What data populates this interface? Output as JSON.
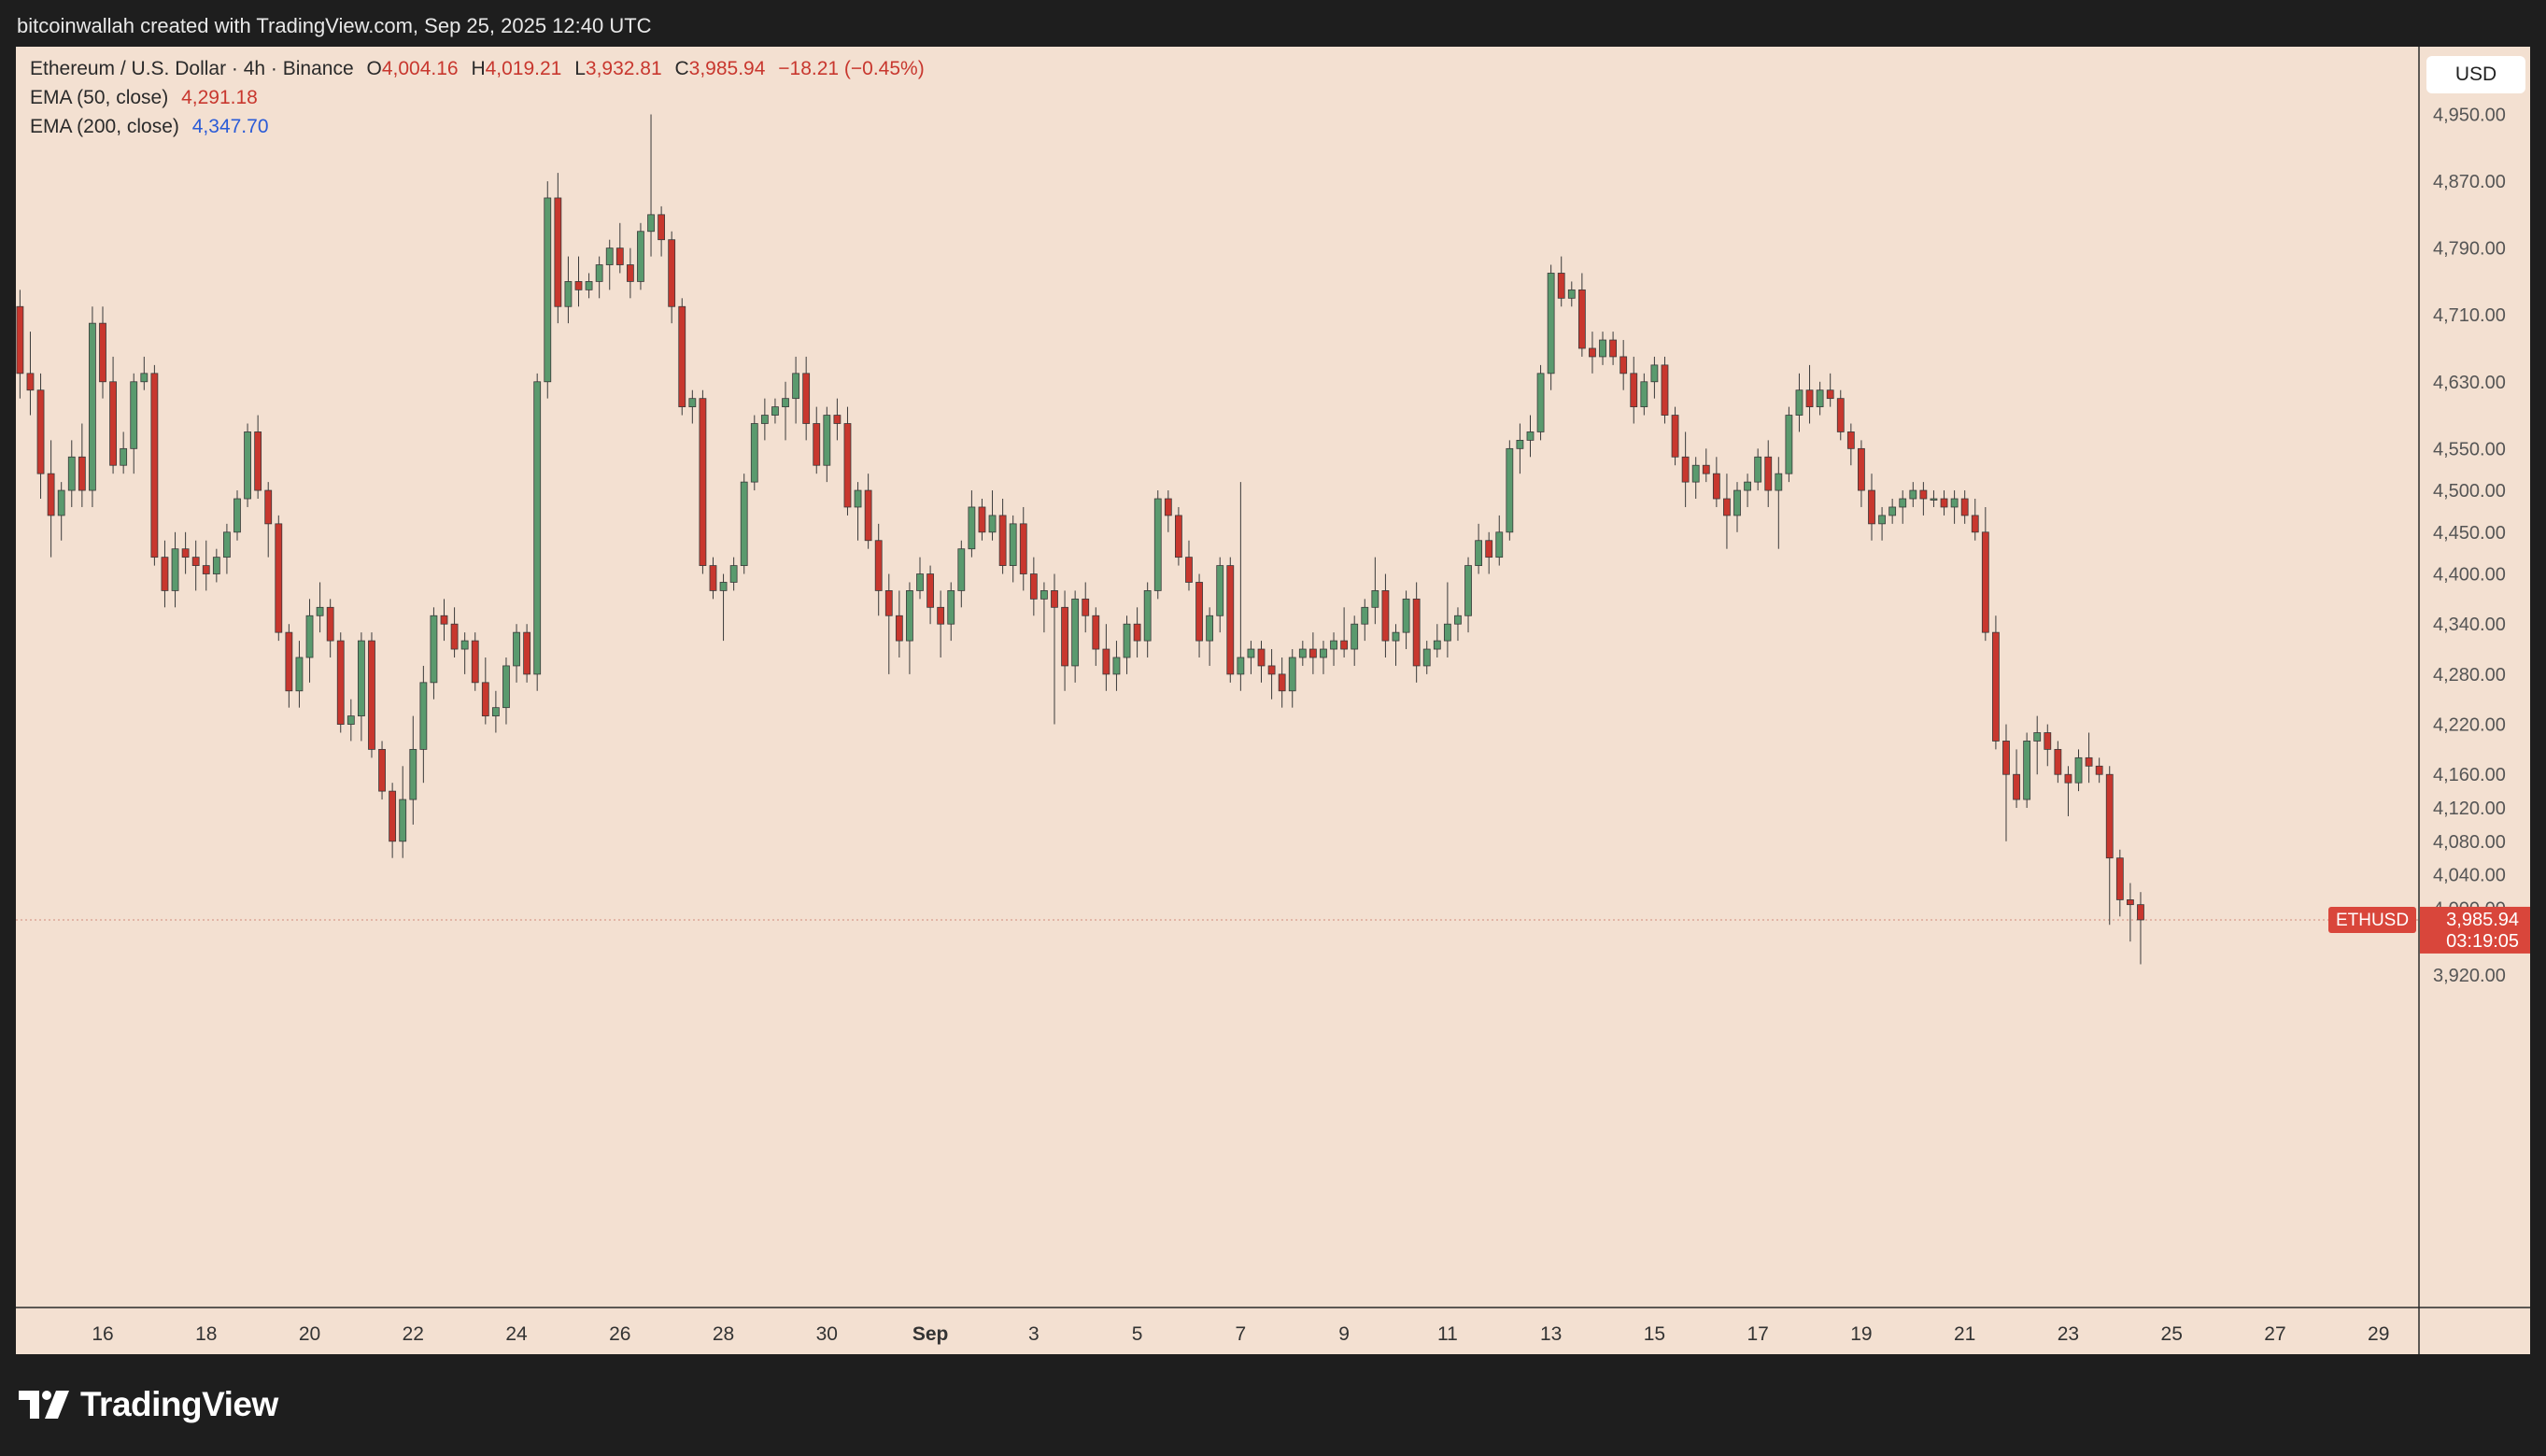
{
  "header": {
    "attribution": "bitcoinwallah created with TradingView.com, Sep 25, 2025 12:40 UTC"
  },
  "legend": {
    "symbol": "Ethereum / U.S. Dollar · 4h · Binance",
    "open_label": "O",
    "open": "4,004.16",
    "high_label": "H",
    "high": "4,019.21",
    "low_label": "L",
    "low": "3,932.81",
    "close_label": "C",
    "close": "3,985.94",
    "change": "−18.21 (−0.45%)",
    "ema50_label": "EMA (50, close)",
    "ema50_value": "4,291.18",
    "ema200_label": "EMA (200, close)",
    "ema200_value": "4,347.70"
  },
  "currency": "USD",
  "price_tag": {
    "symbol": "ETHUSD",
    "price": "3,985.94",
    "countdown": "03:19:05"
  },
  "brand": {
    "name": "TradingView"
  },
  "colors": {
    "up": "#5a9a6e",
    "down": "#c8372e",
    "background": "#f3e0d1",
    "frame": "#1e1e1e"
  },
  "chart_data": {
    "type": "candlestick",
    "interval": "4h",
    "y_ticks": [
      "3,920.00",
      "4,000.00",
      "4,040.00",
      "4,080.00",
      "4,120.00",
      "4,160.00",
      "4,220.00",
      "4,280.00",
      "4,340.00",
      "4,400.00",
      "4,450.00",
      "4,500.00",
      "4,550.00",
      "4,630.00",
      "4,710.00",
      "4,790.00",
      "4,870.00",
      "4,950.00"
    ],
    "y_tick_values": [
      3920,
      4000,
      4040,
      4080,
      4120,
      4160,
      4220,
      4280,
      4340,
      4400,
      4450,
      4500,
      4550,
      4630,
      4710,
      4790,
      4870,
      4950
    ],
    "x_ticks": [
      "16",
      "18",
      "20",
      "22",
      "24",
      "26",
      "28",
      "30",
      "Sep",
      "3",
      "5",
      "7",
      "9",
      "11",
      "13",
      "15",
      "17",
      "19",
      "21",
      "23",
      "25",
      "27",
      "29"
    ],
    "x_tick_days": [
      0,
      2,
      4,
      6,
      8,
      10,
      12,
      14,
      16,
      18,
      20,
      22,
      24,
      26,
      28,
      30,
      32,
      34,
      36,
      38,
      40,
      42,
      44
    ],
    "last_price": 3985.94,
    "series": [
      [
        -1.6,
        4720,
        4740,
        4610,
        4640
      ],
      [
        -1.4,
        4640,
        4690,
        4590,
        4620
      ],
      [
        -1.2,
        4620,
        4640,
        4490,
        4520
      ],
      [
        -1.0,
        4520,
        4560,
        4420,
        4470
      ],
      [
        -0.8,
        4470,
        4510,
        4440,
        4500
      ],
      [
        -0.6,
        4500,
        4560,
        4480,
        4540
      ],
      [
        -0.4,
        4540,
        4580,
        4480,
        4500
      ],
      [
        -0.2,
        4500,
        4720,
        4480,
        4700
      ],
      [
        0.0,
        4700,
        4720,
        4610,
        4630
      ],
      [
        0.2,
        4630,
        4660,
        4520,
        4530
      ],
      [
        0.4,
        4530,
        4570,
        4520,
        4550
      ],
      [
        0.6,
        4550,
        4640,
        4520,
        4630
      ],
      [
        0.8,
        4630,
        4660,
        4620,
        4640
      ],
      [
        1.0,
        4640,
        4650,
        4410,
        4420
      ],
      [
        1.2,
        4420,
        4440,
        4360,
        4380
      ],
      [
        1.4,
        4380,
        4450,
        4360,
        4430
      ],
      [
        1.6,
        4430,
        4450,
        4400,
        4420
      ],
      [
        1.8,
        4420,
        4440,
        4380,
        4410
      ],
      [
        2.0,
        4410,
        4440,
        4380,
        4400
      ],
      [
        2.2,
        4400,
        4430,
        4390,
        4420
      ],
      [
        2.4,
        4420,
        4460,
        4400,
        4450
      ],
      [
        2.6,
        4450,
        4500,
        4440,
        4490
      ],
      [
        2.8,
        4490,
        4580,
        4480,
        4570
      ],
      [
        3.0,
        4570,
        4590,
        4490,
        4500
      ],
      [
        3.2,
        4500,
        4510,
        4420,
        4460
      ],
      [
        3.4,
        4460,
        4470,
        4320,
        4330
      ],
      [
        3.6,
        4330,
        4340,
        4240,
        4260
      ],
      [
        3.8,
        4260,
        4320,
        4240,
        4300
      ],
      [
        4.0,
        4300,
        4370,
        4270,
        4350
      ],
      [
        4.2,
        4350,
        4390,
        4330,
        4360
      ],
      [
        4.4,
        4360,
        4370,
        4300,
        4320
      ],
      [
        4.6,
        4320,
        4330,
        4210,
        4220
      ],
      [
        4.8,
        4220,
        4250,
        4200,
        4230
      ],
      [
        5.0,
        4230,
        4330,
        4200,
        4320
      ],
      [
        5.2,
        4320,
        4330,
        4180,
        4190
      ],
      [
        5.4,
        4190,
        4200,
        4130,
        4140
      ],
      [
        5.6,
        4140,
        4150,
        4060,
        4080
      ],
      [
        5.8,
        4080,
        4170,
        4060,
        4130
      ],
      [
        6.0,
        4130,
        4230,
        4100,
        4190
      ],
      [
        6.2,
        4190,
        4290,
        4150,
        4270
      ],
      [
        6.4,
        4270,
        4360,
        4250,
        4350
      ],
      [
        6.6,
        4350,
        4370,
        4320,
        4340
      ],
      [
        6.8,
        4340,
        4360,
        4300,
        4310
      ],
      [
        7.0,
        4310,
        4330,
        4280,
        4320
      ],
      [
        7.2,
        4320,
        4330,
        4260,
        4270
      ],
      [
        7.4,
        4270,
        4300,
        4220,
        4230
      ],
      [
        7.6,
        4230,
        4260,
        4210,
        4240
      ],
      [
        7.8,
        4240,
        4300,
        4220,
        4290
      ],
      [
        8.0,
        4290,
        4340,
        4270,
        4330
      ],
      [
        8.2,
        4330,
        4340,
        4270,
        4280
      ],
      [
        8.4,
        4280,
        4640,
        4260,
        4630
      ],
      [
        8.6,
        4630,
        4870,
        4610,
        4850
      ],
      [
        8.8,
        4850,
        4880,
        4700,
        4720
      ],
      [
        9.0,
        4720,
        4780,
        4700,
        4750
      ],
      [
        9.2,
        4750,
        4780,
        4720,
        4740
      ],
      [
        9.4,
        4740,
        4760,
        4730,
        4750
      ],
      [
        9.6,
        4750,
        4780,
        4730,
        4770
      ],
      [
        9.8,
        4770,
        4800,
        4740,
        4790
      ],
      [
        10.0,
        4790,
        4820,
        4760,
        4770
      ],
      [
        10.2,
        4770,
        4790,
        4730,
        4750
      ],
      [
        10.4,
        4750,
        4820,
        4740,
        4810
      ],
      [
        10.6,
        4810,
        4950,
        4780,
        4830
      ],
      [
        10.8,
        4830,
        4840,
        4780,
        4800
      ],
      [
        11.0,
        4800,
        4810,
        4700,
        4720
      ],
      [
        11.2,
        4720,
        4730,
        4590,
        4600
      ],
      [
        11.4,
        4600,
        4620,
        4580,
        4610
      ],
      [
        11.6,
        4610,
        4620,
        4400,
        4410
      ],
      [
        11.8,
        4410,
        4420,
        4370,
        4380
      ],
      [
        12.0,
        4380,
        4400,
        4320,
        4390
      ],
      [
        12.2,
        4390,
        4420,
        4380,
        4410
      ],
      [
        12.4,
        4410,
        4520,
        4400,
        4510
      ],
      [
        12.6,
        4510,
        4590,
        4500,
        4580
      ],
      [
        12.8,
        4580,
        4610,
        4560,
        4590
      ],
      [
        13.0,
        4590,
        4610,
        4580,
        4600
      ],
      [
        13.2,
        4600,
        4630,
        4560,
        4610
      ],
      [
        13.4,
        4610,
        4660,
        4580,
        4640
      ],
      [
        13.6,
        4640,
        4660,
        4560,
        4580
      ],
      [
        13.8,
        4580,
        4600,
        4520,
        4530
      ],
      [
        14.0,
        4530,
        4600,
        4510,
        4590
      ],
      [
        14.2,
        4590,
        4610,
        4560,
        4580
      ],
      [
        14.4,
        4580,
        4600,
        4470,
        4480
      ],
      [
        14.6,
        4480,
        4510,
        4440,
        4500
      ],
      [
        14.8,
        4500,
        4520,
        4430,
        4440
      ],
      [
        15.0,
        4440,
        4460,
        4350,
        4380
      ],
      [
        15.2,
        4380,
        4400,
        4280,
        4350
      ],
      [
        15.4,
        4350,
        4380,
        4300,
        4320
      ],
      [
        15.6,
        4320,
        4390,
        4280,
        4380
      ],
      [
        15.8,
        4380,
        4420,
        4370,
        4400
      ],
      [
        16.0,
        4400,
        4410,
        4340,
        4360
      ],
      [
        16.2,
        4360,
        4380,
        4300,
        4340
      ],
      [
        16.4,
        4340,
        4390,
        4320,
        4380
      ],
      [
        16.6,
        4380,
        4440,
        4360,
        4430
      ],
      [
        16.8,
        4430,
        4500,
        4420,
        4480
      ],
      [
        17.0,
        4480,
        4490,
        4440,
        4450
      ],
      [
        17.2,
        4450,
        4500,
        4440,
        4470
      ],
      [
        17.4,
        4470,
        4490,
        4400,
        4410
      ],
      [
        17.6,
        4410,
        4470,
        4390,
        4460
      ],
      [
        17.8,
        4460,
        4480,
        4380,
        4400
      ],
      [
        18.0,
        4400,
        4420,
        4350,
        4370
      ],
      [
        18.2,
        4370,
        4390,
        4330,
        4380
      ],
      [
        18.4,
        4380,
        4400,
        4220,
        4360
      ],
      [
        18.6,
        4360,
        4380,
        4260,
        4290
      ],
      [
        18.8,
        4290,
        4380,
        4270,
        4370
      ],
      [
        19.0,
        4370,
        4390,
        4330,
        4350
      ],
      [
        19.2,
        4350,
        4360,
        4290,
        4310
      ],
      [
        19.4,
        4310,
        4340,
        4260,
        4280
      ],
      [
        19.6,
        4280,
        4320,
        4260,
        4300
      ],
      [
        19.8,
        4300,
        4350,
        4280,
        4340
      ],
      [
        20.0,
        4340,
        4360,
        4300,
        4320
      ],
      [
        20.2,
        4320,
        4390,
        4300,
        4380
      ],
      [
        20.4,
        4380,
        4500,
        4370,
        4490
      ],
      [
        20.6,
        4490,
        4500,
        4450,
        4470
      ],
      [
        20.8,
        4470,
        4480,
        4410,
        4420
      ],
      [
        21.0,
        4420,
        4440,
        4380,
        4390
      ],
      [
        21.2,
        4390,
        4400,
        4300,
        4320
      ],
      [
        21.4,
        4320,
        4360,
        4290,
        4350
      ],
      [
        21.6,
        4350,
        4420,
        4330,
        4410
      ],
      [
        21.8,
        4410,
        4420,
        4270,
        4280
      ],
      [
        22.0,
        4280,
        4510,
        4260,
        4300
      ],
      [
        22.2,
        4300,
        4320,
        4280,
        4310
      ],
      [
        22.4,
        4310,
        4320,
        4270,
        4290
      ],
      [
        22.6,
        4290,
        4310,
        4250,
        4280
      ],
      [
        22.8,
        4280,
        4300,
        4240,
        4260
      ],
      [
        23.0,
        4260,
        4310,
        4240,
        4300
      ],
      [
        23.2,
        4300,
        4320,
        4290,
        4310
      ],
      [
        23.4,
        4310,
        4330,
        4280,
        4300
      ],
      [
        23.6,
        4300,
        4320,
        4280,
        4310
      ],
      [
        23.8,
        4310,
        4330,
        4290,
        4320
      ],
      [
        24.0,
        4320,
        4360,
        4300,
        4310
      ],
      [
        24.2,
        4310,
        4350,
        4290,
        4340
      ],
      [
        24.4,
        4340,
        4370,
        4320,
        4360
      ],
      [
        24.6,
        4360,
        4420,
        4340,
        4380
      ],
      [
        24.8,
        4380,
        4400,
        4300,
        4320
      ],
      [
        25.0,
        4320,
        4340,
        4290,
        4330
      ],
      [
        25.2,
        4330,
        4380,
        4310,
        4370
      ],
      [
        25.4,
        4370,
        4390,
        4270,
        4290
      ],
      [
        25.6,
        4290,
        4320,
        4280,
        4310
      ],
      [
        25.8,
        4310,
        4340,
        4300,
        4320
      ],
      [
        26.0,
        4320,
        4390,
        4300,
        4340
      ],
      [
        26.2,
        4340,
        4360,
        4320,
        4350
      ],
      [
        26.4,
        4350,
        4420,
        4330,
        4410
      ],
      [
        26.6,
        4410,
        4460,
        4400,
        4440
      ],
      [
        26.8,
        4440,
        4450,
        4400,
        4420
      ],
      [
        27.0,
        4420,
        4470,
        4410,
        4450
      ],
      [
        27.2,
        4450,
        4560,
        4440,
        4550
      ],
      [
        27.4,
        4550,
        4580,
        4520,
        4560
      ],
      [
        27.6,
        4560,
        4590,
        4540,
        4570
      ],
      [
        27.8,
        4570,
        4650,
        4560,
        4640
      ],
      [
        28.0,
        4640,
        4770,
        4620,
        4760
      ],
      [
        28.2,
        4760,
        4780,
        4720,
        4730
      ],
      [
        28.4,
        4730,
        4750,
        4720,
        4740
      ],
      [
        28.6,
        4740,
        4760,
        4660,
        4670
      ],
      [
        28.8,
        4670,
        4690,
        4640,
        4660
      ],
      [
        29.0,
        4660,
        4690,
        4650,
        4680
      ],
      [
        29.2,
        4680,
        4690,
        4650,
        4660
      ],
      [
        29.4,
        4660,
        4680,
        4620,
        4640
      ],
      [
        29.6,
        4640,
        4660,
        4580,
        4600
      ],
      [
        29.8,
        4600,
        4640,
        4590,
        4630
      ],
      [
        30.0,
        4630,
        4660,
        4610,
        4650
      ],
      [
        30.2,
        4650,
        4660,
        4580,
        4590
      ],
      [
        30.4,
        4590,
        4600,
        4530,
        4540
      ],
      [
        30.6,
        4540,
        4570,
        4480,
        4510
      ],
      [
        30.8,
        4510,
        4540,
        4490,
        4530
      ],
      [
        31.0,
        4530,
        4550,
        4510,
        4520
      ],
      [
        31.2,
        4520,
        4540,
        4480,
        4490
      ],
      [
        31.4,
        4490,
        4520,
        4430,
        4470
      ],
      [
        31.6,
        4470,
        4510,
        4450,
        4500
      ],
      [
        31.8,
        4500,
        4520,
        4480,
        4510
      ],
      [
        32.0,
        4510,
        4550,
        4500,
        4540
      ],
      [
        32.2,
        4540,
        4560,
        4480,
        4500
      ],
      [
        32.4,
        4500,
        4540,
        4430,
        4520
      ],
      [
        32.6,
        4520,
        4600,
        4510,
        4590
      ],
      [
        32.8,
        4590,
        4640,
        4570,
        4620
      ],
      [
        33.0,
        4620,
        4650,
        4580,
        4600
      ],
      [
        33.2,
        4600,
        4630,
        4590,
        4620
      ],
      [
        33.4,
        4620,
        4640,
        4600,
        4610
      ],
      [
        33.6,
        4610,
        4620,
        4560,
        4570
      ],
      [
        33.8,
        4570,
        4580,
        4530,
        4550
      ],
      [
        34.0,
        4550,
        4560,
        4480,
        4500
      ],
      [
        34.2,
        4500,
        4520,
        4440,
        4460
      ],
      [
        34.4,
        4460,
        4480,
        4440,
        4470
      ],
      [
        34.6,
        4470,
        4490,
        4460,
        4480
      ],
      [
        34.8,
        4480,
        4500,
        4460,
        4490
      ],
      [
        35.0,
        4490,
        4510,
        4480,
        4500
      ],
      [
        35.2,
        4500,
        4510,
        4470,
        4490
      ],
      [
        35.4,
        4490,
        4500,
        4480,
        4490
      ],
      [
        35.6,
        4490,
        4500,
        4470,
        4480
      ],
      [
        35.8,
        4480,
        4500,
        4460,
        4490
      ],
      [
        36.0,
        4490,
        4500,
        4460,
        4470
      ],
      [
        36.2,
        4470,
        4490,
        4440,
        4450
      ],
      [
        36.4,
        4450,
        4480,
        4320,
        4330
      ],
      [
        36.6,
        4330,
        4350,
        4190,
        4200
      ],
      [
        36.8,
        4200,
        4220,
        4080,
        4160
      ],
      [
        37.0,
        4160,
        4190,
        4120,
        4130
      ],
      [
        37.2,
        4130,
        4210,
        4120,
        4200
      ],
      [
        37.4,
        4200,
        4230,
        4160,
        4210
      ],
      [
        37.6,
        4210,
        4220,
        4170,
        4190
      ],
      [
        37.8,
        4190,
        4200,
        4150,
        4160
      ],
      [
        38.0,
        4160,
        4170,
        4110,
        4150
      ],
      [
        38.2,
        4150,
        4190,
        4140,
        4180
      ],
      [
        38.4,
        4180,
        4210,
        4150,
        4170
      ],
      [
        38.6,
        4170,
        4180,
        4150,
        4160
      ],
      [
        38.8,
        4160,
        4170,
        3980,
        4060
      ],
      [
        39.0,
        4060,
        4070,
        3990,
        4010
      ],
      [
        39.2,
        4010,
        4030,
        3960,
        4004.16
      ],
      [
        39.4,
        4004.16,
        4019.21,
        3932.81,
        3985.94
      ]
    ]
  }
}
